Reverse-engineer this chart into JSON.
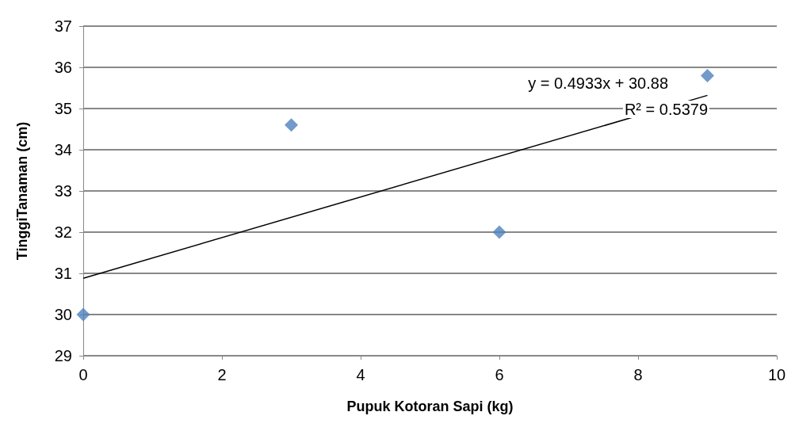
{
  "chart_data": {
    "type": "scatter",
    "xlabel": "Pupuk Kotoran Sapi (kg)",
    "ylabel": "TinggiTanaman (cm)",
    "series": [
      {
        "color": "#4f81bd",
        "x": [
          0,
          3,
          6,
          9
        ],
        "values": [
          30,
          34.6,
          32,
          35.8
        ]
      },
      {
        "type": "line",
        "color": "#000000",
        "x": [
          0,
          9
        ],
        "values": [
          30.88,
          35.32
        ],
        "marker": "none"
      }
    ],
    "annotations": [
      "y = 0.4933x + 30.88",
      "R² = 0.5379"
    ],
    "xlim": [
      0,
      10
    ],
    "xticks": [
      0,
      2,
      4,
      6,
      8,
      10
    ],
    "ylim": [
      29,
      37
    ],
    "yticks": [
      29,
      30,
      31,
      32,
      33,
      34,
      35,
      36,
      37
    ],
    "grid": "y",
    "marker": "diamond"
  }
}
